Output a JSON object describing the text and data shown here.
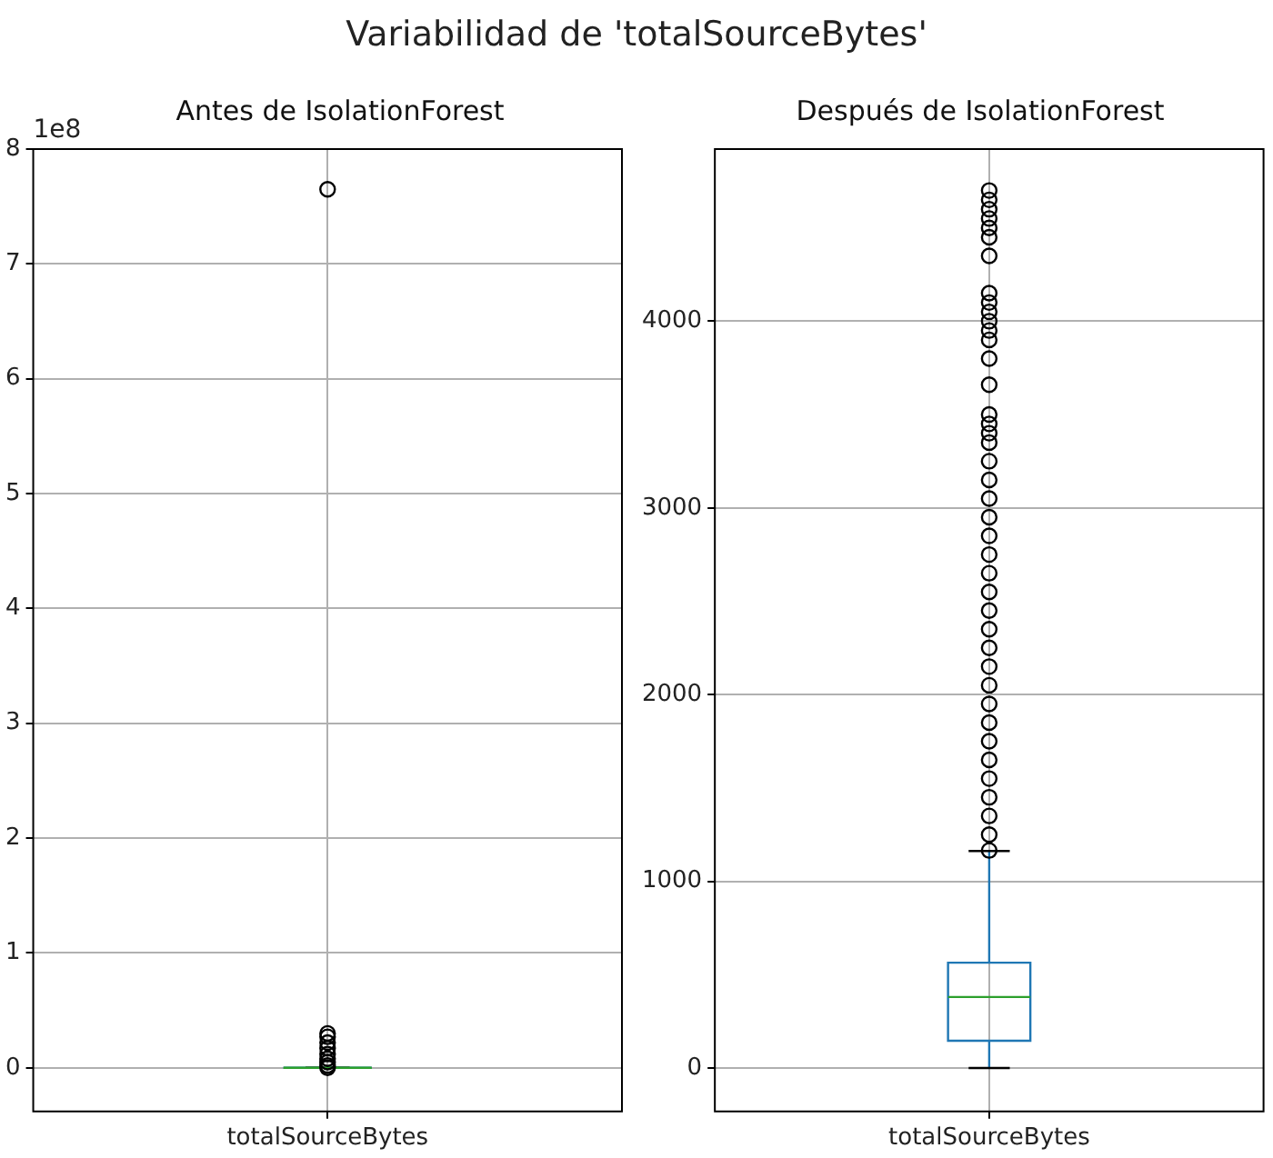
{
  "chart_data": [
    {
      "type": "box",
      "title": "Variabilidad de 'totalSourceBytes'",
      "subtitle": "Antes de IsolationForest",
      "categories": [
        "totalSourceBytes"
      ],
      "annotations": [
        "1e8"
      ],
      "ylim": [
        -0.38,
        8
      ],
      "yticks": [
        0,
        1,
        2,
        3,
        4,
        5,
        6,
        7,
        8
      ],
      "grid": true,
      "series": [
        {
          "color": "#1f77b4",
          "boxes": [
            {
              "low": 0,
              "q1": 0,
              "median": 0,
              "q3": 0,
              "high": 0,
              "outliers": [
                0,
                0.02,
                0.05,
                0.08,
                0.12,
                0.17,
                0.22,
                0.27,
                0.3,
                7.65
              ]
            }
          ]
        }
      ]
    },
    {
      "type": "box",
      "title": "Después de IsolationForest",
      "categories": [
        "totalSourceBytes"
      ],
      "ylim": [
        -233,
        4922
      ],
      "yticks": [
        0,
        1000,
        2000,
        3000,
        4000
      ],
      "grid": true,
      "series": [
        {
          "color": "#1f77b4",
          "boxes": [
            {
              "low": 0,
              "q1": 146,
              "median": 380,
              "q3": 564,
              "high": 1162,
              "outliers": [
                1165,
                1250,
                1350,
                1450,
                1550,
                1650,
                1750,
                1850,
                1950,
                2050,
                2150,
                2250,
                2350,
                2450,
                2550,
                2650,
                2750,
                2850,
                2950,
                3050,
                3150,
                3250,
                3350,
                3400,
                3450,
                3500,
                3660,
                3800,
                3900,
                3950,
                4000,
                4050,
                4100,
                4150,
                4350,
                4450,
                4500,
                4550,
                4600,
                4650,
                4700
              ]
            }
          ]
        }
      ]
    }
  ]
}
